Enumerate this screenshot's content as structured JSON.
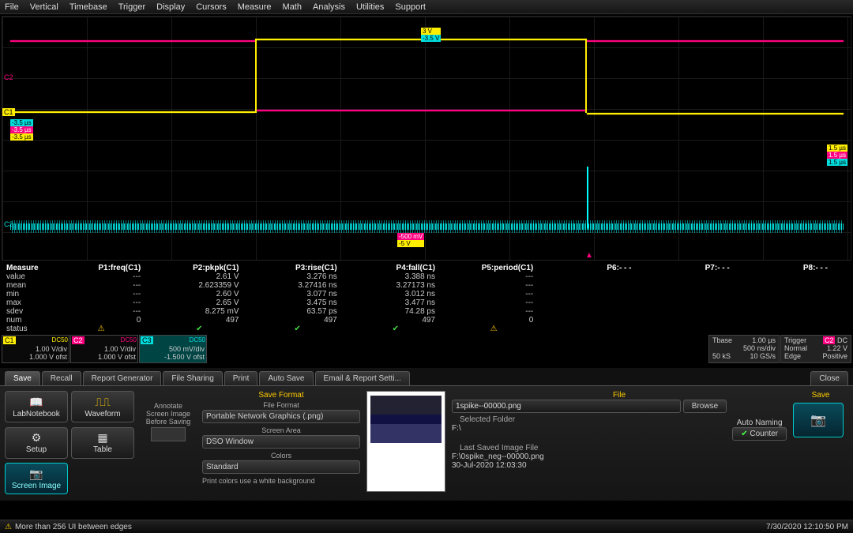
{
  "menu": [
    "File",
    "Vertical",
    "Timebase",
    "Trigger",
    "Display",
    "Cursors",
    "Measure",
    "Math",
    "Analysis",
    "Utilities",
    "Support"
  ],
  "markers": {
    "top_y": "3 V",
    "top_c": "-3.5 V",
    "left_c": "-3.5 µs",
    "left_m": "-3.5 µs",
    "left_y": "-3.5 µs",
    "right_y": "1.5 µs",
    "right_m": "1.5 µs",
    "right_c": "1.5 µs",
    "bot_m": "-500 mV",
    "bot_y": "-5 V"
  },
  "channel_labels": {
    "c1": "C1",
    "c2": "C2",
    "c3": "C3"
  },
  "waveforms": {
    "colors": {
      "c1": "#ffee00",
      "c2": "#ff0080",
      "c3": "#00ffff"
    },
    "grid_color": "#1a1a1a",
    "background": "#000000"
  },
  "meas": {
    "header": [
      "Measure",
      "P1:freq(C1)",
      "P2:pkpk(C1)",
      "P3:rise(C1)",
      "P4:fall(C1)",
      "P5:period(C1)",
      "P6:- - -",
      "P7:- - -",
      "P8:- - -"
    ],
    "rows": [
      [
        "value",
        "---",
        "2.61 V",
        "3.276 ns",
        "3.388 ns",
        "---",
        "",
        "",
        ""
      ],
      [
        "mean",
        "---",
        "2.623359 V",
        "3.27416 ns",
        "3.27173 ns",
        "---",
        "",
        "",
        ""
      ],
      [
        "min",
        "---",
        "2.60 V",
        "3.077 ns",
        "3.012 ns",
        "---",
        "",
        "",
        ""
      ],
      [
        "max",
        "---",
        "2.65 V",
        "3.475 ns",
        "3.477 ns",
        "---",
        "",
        "",
        ""
      ],
      [
        "sdev",
        "---",
        "8.275 mV",
        "63.57 ps",
        "74.28 ps",
        "---",
        "",
        "",
        ""
      ],
      [
        "num",
        "0",
        "497",
        "497",
        "497",
        "0",
        "",
        "",
        ""
      ]
    ],
    "status_label": "status",
    "status": [
      "warn",
      "ok",
      "ok",
      "ok",
      "warn",
      "",
      "",
      ""
    ]
  },
  "channels": {
    "c1": {
      "id": "C1",
      "imp": "DC50",
      "vdiv": "1.00 V/div",
      "ofst": "1.000 V ofst"
    },
    "c2": {
      "id": "C2",
      "imp": "DC50",
      "vdiv": "1.00 V/div",
      "ofst": "1.000 V ofst"
    },
    "c3": {
      "id": "C3",
      "imp": "DC50",
      "vdiv": "500 mV/div",
      "ofst": "-1.500 V ofst"
    }
  },
  "timebase": {
    "label": "Tbase",
    "val": "1.00 µs",
    "l2a": "50 kS",
    "l2b": "500 ns/div",
    "l2c": "10 GS/s"
  },
  "trigger": {
    "label": "Trigger",
    "src": "C2",
    "coup": "DC",
    "mode": "Normal",
    "level": "1.22 V",
    "edge": "Edge",
    "slope": "Positive"
  },
  "tabs": {
    "list": [
      "Save",
      "Recall",
      "Report Generator",
      "File Sharing",
      "Print",
      "Auto Save",
      "Email & Report Setti..."
    ],
    "close": "Close",
    "active": 0
  },
  "buttons": {
    "labnotebook": "LabNotebook",
    "waveform": "Waveform",
    "setup": "Setup",
    "table": "Table",
    "screenimage": "Screen Image"
  },
  "annotate": {
    "l1": "Annotate",
    "l2": "Screen Image",
    "l3": "Before Saving"
  },
  "savefmt": {
    "title": "Save Format",
    "fileformat_label": "File Format",
    "fileformat": "Portable Network Graphics (.png)",
    "screenarea_label": "Screen Area",
    "screenarea": "DSO Window",
    "colors_label": "Colors",
    "colors": "Standard",
    "note": "Print colors use a white background"
  },
  "file": {
    "title": "File",
    "filename": "1spike--00000.png",
    "browse": "Browse",
    "selfolder_label": "Selected Folder",
    "selfolder": "F:\\",
    "autonaming_label": "Auto Naming",
    "counter": "Counter",
    "lastsaved_label": "Last Saved Image File",
    "lastsaved_path": "F:\\0spike_neg--00000.png",
    "lastsaved_time": "30-Jul-2020 12:03:30"
  },
  "save_action": "Save",
  "status": {
    "warn_icon": "⚠",
    "msg": "More than 256 UI between edges",
    "time": "7/30/2020 12:10:50 PM"
  }
}
